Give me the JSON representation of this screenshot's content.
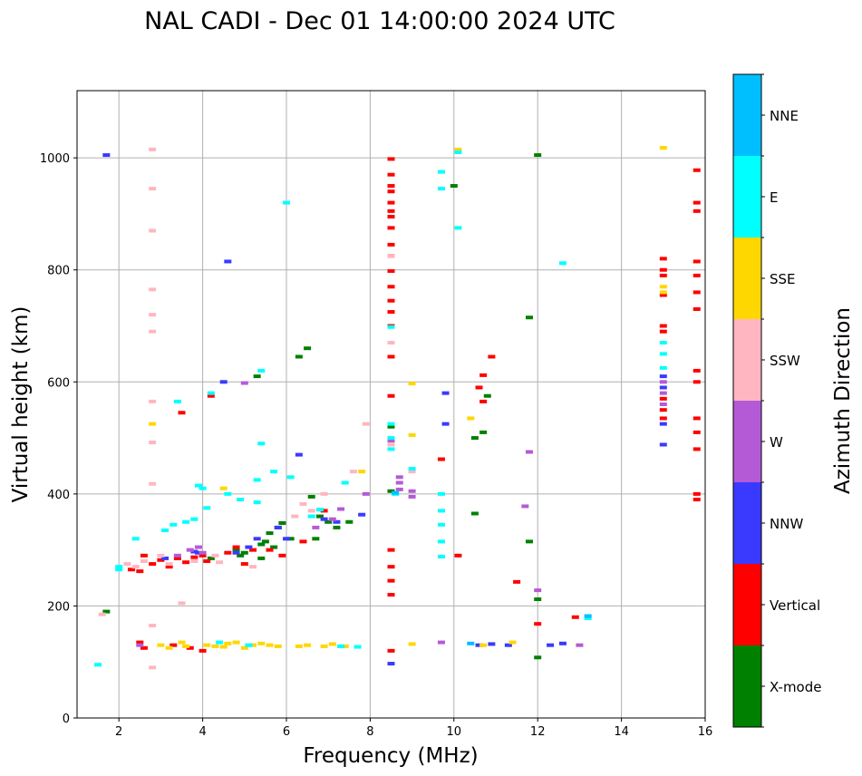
{
  "chart_data": {
    "type": "scatter",
    "title": "NAL CADI - Dec 01 14:00:00 2024 UTC",
    "xlabel": "Frequency (MHz)",
    "ylabel": "Virtual height (km)",
    "xlim": [
      1,
      16
    ],
    "ylim": [
      0,
      1120
    ],
    "xticks": [
      2,
      4,
      6,
      8,
      10,
      12,
      14,
      16
    ],
    "yticks": [
      0,
      200,
      400,
      600,
      800,
      1000
    ],
    "grid": true,
    "colorbar": {
      "label": "Azimuth Direction",
      "categories": [
        {
          "name": "X-mode",
          "color": "#008000"
        },
        {
          "name": "Vertical",
          "color": "#ff0000"
        },
        {
          "name": "NNW",
          "color": "#3a3aff"
        },
        {
          "name": "W",
          "color": "#b55ad6"
        },
        {
          "name": "SSW",
          "color": "#ffb6c1"
        },
        {
          "name": "SSE",
          "color": "#ffd700"
        },
        {
          "name": "E",
          "color": "#00ffff"
        },
        {
          "name": "NNE",
          "color": "#00bfff"
        }
      ]
    },
    "series": [
      {
        "name": "X-mode",
        "points": [
          [
            1.7,
            190
          ],
          [
            4.2,
            285
          ],
          [
            4.8,
            300
          ],
          [
            5.0,
            295
          ],
          [
            5.3,
            610
          ],
          [
            5.4,
            310
          ],
          [
            5.5,
            315
          ],
          [
            5.6,
            330
          ],
          [
            5.7,
            305
          ],
          [
            5.8,
            340
          ],
          [
            6.1,
            320
          ],
          [
            6.3,
            645
          ],
          [
            6.5,
            660
          ],
          [
            6.6,
            395
          ],
          [
            6.7,
            320
          ],
          [
            6.8,
            360
          ],
          [
            7.0,
            350
          ],
          [
            7.2,
            340
          ],
          [
            7.5,
            350
          ],
          [
            8.5,
            520
          ],
          [
            10.0,
            950
          ],
          [
            10.5,
            365
          ],
          [
            10.5,
            500
          ],
          [
            10.7,
            510
          ],
          [
            10.8,
            575
          ],
          [
            11.8,
            715
          ],
          [
            11.8,
            315
          ],
          [
            12.0,
            1005
          ],
          [
            12.0,
            212
          ],
          [
            12.0,
            108
          ],
          [
            8.5,
            405
          ],
          [
            5.4,
            285
          ],
          [
            4.9,
            290
          ],
          [
            5.9,
            348
          ]
        ]
      },
      {
        "name": "Vertical",
        "points": [
          [
            2.3,
            265
          ],
          [
            2.5,
            262
          ],
          [
            2.6,
            290
          ],
          [
            2.8,
            275
          ],
          [
            3.0,
            282
          ],
          [
            3.2,
            270
          ],
          [
            3.4,
            285
          ],
          [
            3.6,
            278
          ],
          [
            3.8,
            287
          ],
          [
            4.0,
            290
          ],
          [
            4.1,
            280
          ],
          [
            4.2,
            575
          ],
          [
            3.5,
            545
          ],
          [
            4.6,
            295
          ],
          [
            4.8,
            305
          ],
          [
            5.0,
            275
          ],
          [
            5.2,
            300
          ],
          [
            5.6,
            300
          ],
          [
            5.9,
            290
          ],
          [
            6.4,
            315
          ],
          [
            6.9,
            370
          ],
          [
            8.5,
            998
          ],
          [
            8.5,
            970
          ],
          [
            8.5,
            950
          ],
          [
            8.5,
            940
          ],
          [
            8.5,
            920
          ],
          [
            8.5,
            905
          ],
          [
            8.5,
            895
          ],
          [
            8.5,
            875
          ],
          [
            8.5,
            845
          ],
          [
            8.5,
            825
          ],
          [
            8.5,
            798
          ],
          [
            8.5,
            770
          ],
          [
            8.5,
            745
          ],
          [
            8.5,
            725
          ],
          [
            8.5,
            700
          ],
          [
            8.5,
            645
          ],
          [
            8.5,
            575
          ],
          [
            8.5,
            300
          ],
          [
            8.5,
            270
          ],
          [
            8.5,
            245
          ],
          [
            8.5,
            220
          ],
          [
            8.5,
            120
          ],
          [
            9.7,
            462
          ],
          [
            10.1,
            290
          ],
          [
            10.6,
            590
          ],
          [
            10.7,
            612
          ],
          [
            10.7,
            565
          ],
          [
            10.9,
            645
          ],
          [
            11.5,
            243
          ],
          [
            12.0,
            168
          ],
          [
            12.9,
            180
          ],
          [
            2.6,
            125
          ],
          [
            3.3,
            130
          ],
          [
            3.7,
            125
          ],
          [
            4.0,
            120
          ],
          [
            2.5,
            135
          ],
          [
            15.0,
            820
          ],
          [
            15.0,
            800
          ],
          [
            15.0,
            790
          ],
          [
            15.0,
            755
          ],
          [
            15.0,
            700
          ],
          [
            15.0,
            690
          ],
          [
            15.0,
            570
          ],
          [
            15.0,
            550
          ],
          [
            15.0,
            535
          ],
          [
            15.8,
            978
          ],
          [
            15.8,
            920
          ],
          [
            15.8,
            905
          ],
          [
            15.8,
            815
          ],
          [
            15.8,
            790
          ],
          [
            15.8,
            760
          ],
          [
            15.8,
            730
          ],
          [
            15.8,
            620
          ],
          [
            15.8,
            600
          ],
          [
            15.8,
            535
          ],
          [
            15.8,
            510
          ],
          [
            15.8,
            480
          ],
          [
            15.8,
            400
          ],
          [
            15.8,
            390
          ]
        ]
      },
      {
        "name": "NNW",
        "points": [
          [
            1.7,
            1005
          ],
          [
            3.9,
            295
          ],
          [
            4.5,
            600
          ],
          [
            4.6,
            815
          ],
          [
            4.8,
            295
          ],
          [
            5.1,
            305
          ],
          [
            5.3,
            320
          ],
          [
            5.8,
            340
          ],
          [
            6.3,
            470
          ],
          [
            6.9,
            355
          ],
          [
            7.2,
            350
          ],
          [
            7.8,
            363
          ],
          [
            9.8,
            580
          ],
          [
            9.8,
            525
          ],
          [
            10.6,
            130
          ],
          [
            10.9,
            132
          ],
          [
            11.3,
            130
          ],
          [
            12.3,
            130
          ],
          [
            12.6,
            133
          ],
          [
            15.0,
            488
          ],
          [
            15.0,
            610
          ],
          [
            15.0,
            590
          ],
          [
            15.0,
            525
          ],
          [
            8.5,
            97
          ],
          [
            3.1,
            285
          ],
          [
            3.8,
            297
          ],
          [
            6.0,
            320
          ]
        ]
      },
      {
        "name": "W",
        "points": [
          [
            3.4,
            290
          ],
          [
            3.7,
            300
          ],
          [
            3.9,
            305
          ],
          [
            4.0,
            295
          ],
          [
            5.0,
            598
          ],
          [
            6.7,
            340
          ],
          [
            7.1,
            355
          ],
          [
            7.3,
            373
          ],
          [
            7.9,
            400
          ],
          [
            8.5,
            495
          ],
          [
            8.7,
            430
          ],
          [
            8.7,
            420
          ],
          [
            8.7,
            408
          ],
          [
            9.0,
            405
          ],
          [
            9.0,
            395
          ],
          [
            9.7,
            135
          ],
          [
            11.7,
            378
          ],
          [
            11.8,
            475
          ],
          [
            12.0,
            228
          ],
          [
            13.0,
            130
          ],
          [
            15.0,
            600
          ],
          [
            15.0,
            580
          ],
          [
            15.0,
            560
          ],
          [
            2.5,
            130
          ]
        ]
      },
      {
        "name": "SSW",
        "points": [
          [
            1.6,
            185
          ],
          [
            2.8,
            1015
          ],
          [
            2.8,
            945
          ],
          [
            2.8,
            870
          ],
          [
            2.8,
            765
          ],
          [
            2.8,
            720
          ],
          [
            2.8,
            690
          ],
          [
            2.8,
            565
          ],
          [
            2.8,
            492
          ],
          [
            2.8,
            418
          ],
          [
            2.8,
            165
          ],
          [
            2.8,
            90
          ],
          [
            3.5,
            205
          ],
          [
            4.4,
            278
          ],
          [
            5.2,
            270
          ],
          [
            6.2,
            360
          ],
          [
            6.9,
            400
          ],
          [
            7.6,
            440
          ],
          [
            7.9,
            525
          ],
          [
            8.5,
            825
          ],
          [
            8.5,
            670
          ],
          [
            8.5,
            488
          ],
          [
            9.0,
            440
          ],
          [
            2.2,
            275
          ],
          [
            2.4,
            270
          ],
          [
            2.6,
            280
          ],
          [
            3.0,
            290
          ],
          [
            3.2,
            275
          ],
          [
            3.8,
            280
          ],
          [
            4.3,
            290
          ],
          [
            6.6,
            370
          ],
          [
            6.4,
            382
          ]
        ]
      },
      {
        "name": "SSE",
        "points": [
          [
            2.8,
            525
          ],
          [
            3.0,
            130
          ],
          [
            3.2,
            125
          ],
          [
            3.5,
            135
          ],
          [
            3.6,
            128
          ],
          [
            4.1,
            130
          ],
          [
            4.3,
            128
          ],
          [
            4.5,
            127
          ],
          [
            4.6,
            133
          ],
          [
            4.8,
            135
          ],
          [
            5.0,
            125
          ],
          [
            5.2,
            130
          ],
          [
            5.4,
            133
          ],
          [
            5.6,
            130
          ],
          [
            5.8,
            128
          ],
          [
            6.3,
            128
          ],
          [
            6.5,
            130
          ],
          [
            6.9,
            128
          ],
          [
            7.1,
            132
          ],
          [
            7.4,
            128
          ],
          [
            9.0,
            132
          ],
          [
            9.0,
            597
          ],
          [
            9.0,
            505
          ],
          [
            10.1,
            1015
          ],
          [
            10.4,
            535
          ],
          [
            10.7,
            130
          ],
          [
            11.4,
            135
          ],
          [
            15.0,
            1018
          ],
          [
            15.0,
            770
          ],
          [
            15.0,
            760
          ],
          [
            4.5,
            410
          ],
          [
            7.8,
            440
          ]
        ]
      },
      {
        "name": "E",
        "points": [
          [
            1.5,
            95
          ],
          [
            2.0,
            265
          ],
          [
            2.4,
            320
          ],
          [
            3.1,
            335
          ],
          [
            3.3,
            345
          ],
          [
            3.4,
            565
          ],
          [
            3.6,
            350
          ],
          [
            3.8,
            355
          ],
          [
            4.0,
            410
          ],
          [
            4.1,
            375
          ],
          [
            4.2,
            580
          ],
          [
            4.6,
            400
          ],
          [
            4.9,
            390
          ],
          [
            5.4,
            490
          ],
          [
            5.3,
            425
          ],
          [
            5.7,
            440
          ],
          [
            5.3,
            385
          ],
          [
            5.4,
            620
          ],
          [
            6.0,
            920
          ],
          [
            6.1,
            430
          ],
          [
            6.6,
            360
          ],
          [
            7.4,
            420
          ],
          [
            7.7,
            127
          ],
          [
            8.5,
            698
          ],
          [
            8.5,
            525
          ],
          [
            8.5,
            500
          ],
          [
            8.5,
            480
          ],
          [
            8.6,
            400
          ],
          [
            9.0,
            445
          ],
          [
            9.7,
            975
          ],
          [
            9.7,
            945
          ],
          [
            9.7,
            400
          ],
          [
            9.7,
            370
          ],
          [
            9.7,
            345
          ],
          [
            9.7,
            315
          ],
          [
            9.7,
            288
          ],
          [
            10.1,
            875
          ],
          [
            10.1,
            1010
          ],
          [
            12.6,
            812
          ],
          [
            13.2,
            178
          ],
          [
            15.0,
            670
          ],
          [
            15.0,
            650
          ],
          [
            15.0,
            625
          ],
          [
            4.4,
            135
          ],
          [
            5.1,
            130
          ],
          [
            3.9,
            415
          ],
          [
            6.8,
            372
          ],
          [
            2.0,
            270
          ],
          [
            7.3,
            128
          ]
        ]
      },
      {
        "name": "NNE",
        "points": [
          [
            13.2,
            182
          ],
          [
            8.6,
            402
          ],
          [
            10.4,
            133
          ]
        ]
      }
    ]
  }
}
